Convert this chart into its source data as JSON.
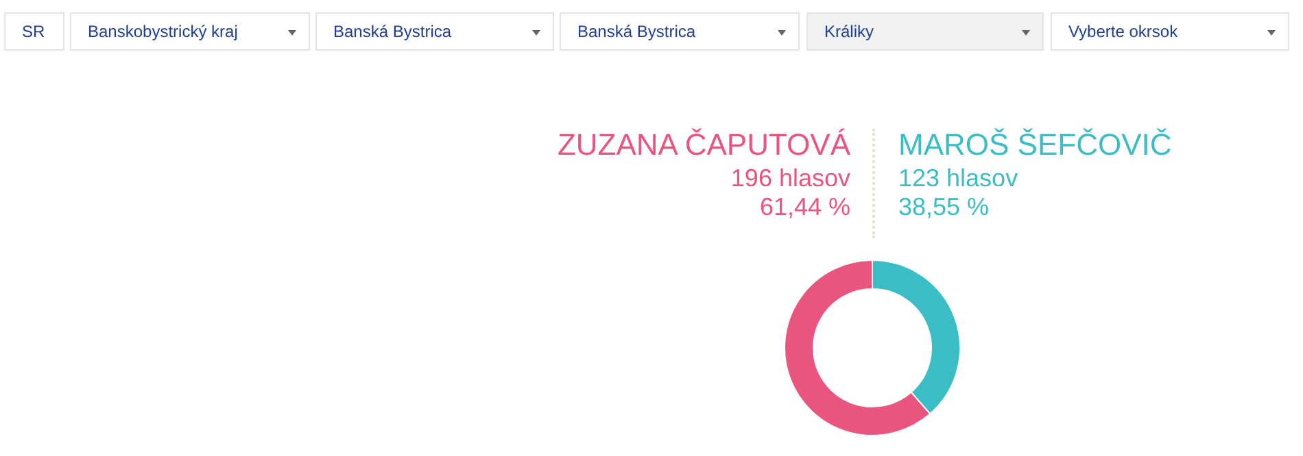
{
  "chart_data": {
    "type": "donut",
    "categories": [
      "ZUZANA ČAPUTOVÁ",
      "MAROŠ ŠEFČOVIČ"
    ],
    "values": [
      196,
      123
    ],
    "colors": [
      "#e9557f",
      "#3bbdc6"
    ],
    "value_labels": [
      "196 hlasov",
      "123 hlasov"
    ],
    "annotations": [
      "SR",
      "Banskobystrický kraj",
      "Banská Bystrica",
      "Banská Bystrica",
      "Králiky",
      "Vyberte okrsok",
      "61,44 %",
      "38,55 %"
    ],
    "legend": false
  }
}
